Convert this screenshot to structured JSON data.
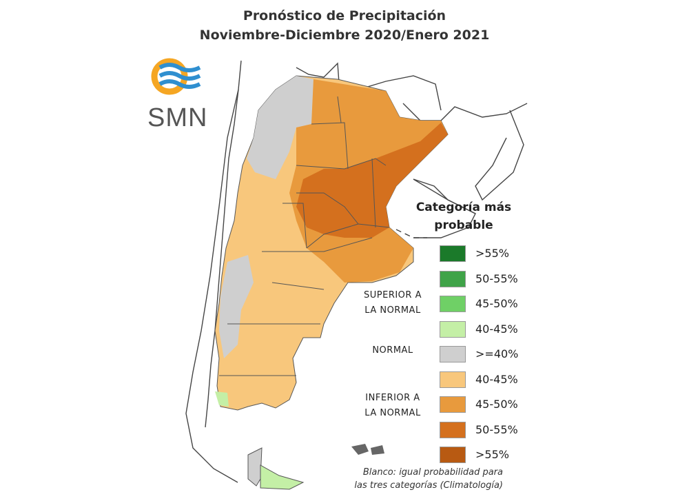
{
  "title": {
    "line1": "Pronóstico de Precipitación",
    "line2": "Noviembre-Diciembre 2020/Enero 2021"
  },
  "logo": {
    "text": "SMN",
    "icon": "smn-logo-icon",
    "colors": {
      "ring": "#f5a623",
      "waves": "#2f8fd0"
    }
  },
  "legend": {
    "title_line1": "Categoría más",
    "title_line2": "probable",
    "groups": {
      "superior": [
        "SUPERIOR A",
        "LA NORMAL"
      ],
      "normal": [
        "NORMAL"
      ],
      "inferior": [
        "INFERIOR A",
        "LA NORMAL"
      ]
    },
    "items": [
      {
        "label": ">55%",
        "color": "#1b7a2a"
      },
      {
        "label": "50-55%",
        "color": "#3fa348"
      },
      {
        "label": "45-50%",
        "color": "#6fd066"
      },
      {
        "label": "40-45%",
        "color": "#c4efa6"
      },
      {
        "label": ">=40%",
        "color": "#cfcfcf"
      },
      {
        "label": "40-45%",
        "color": "#f8c77c"
      },
      {
        "label": "45-50%",
        "color": "#e89a3d"
      },
      {
        "label": "50-55%",
        "color": "#d4701e"
      },
      {
        "label": ">55%",
        "color": "#b85a12"
      }
    ]
  },
  "note": {
    "line1": "Blanco: igual probabilidad para",
    "line2": "las tres categorías (Climatología)"
  }
}
